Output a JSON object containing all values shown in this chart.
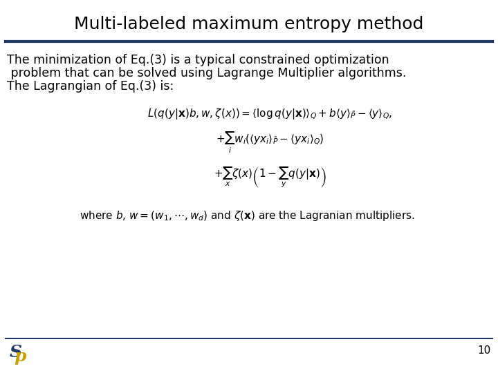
{
  "title": "Multi-labeled maximum entropy method",
  "body_line1": "The minimization of Eq.(3) is a typical constrained optimization",
  "body_line2": " problem that can be solved using Lagrange Multiplier algorithms.",
  "body_line3": "The Lagrangian of Eq.(3) is:",
  "formula_line1": "$L\\left(q(y|\\mathbf{x})b, w, \\zeta(x)\\right) = \\langle \\log q(y|\\mathbf{x}) \\rangle_Q + b\\langle y \\rangle_{\\tilde{P}} - \\langle y \\rangle_Q,$",
  "formula_line2": "$+ \\sum_i w_i \\left( \\langle yx_i \\rangle_{\\tilde{P}} - \\langle yx_i \\rangle_Q \\right)$",
  "formula_line3": "$+ \\sum_x \\zeta(x) \\left(1 - \\sum_y q(y|\\mathbf{x}) \\right)$",
  "caption": "where $b$, $w=(w_1, \\cdots , w_d)$ and $\\zeta(\\mathbf{x})$ are the Lagranian multipliers.",
  "page_number": "10",
  "bg_color": "#ffffff",
  "title_color": "#000000",
  "body_color": "#000000",
  "line_color": "#1f3864",
  "footer_line_color": "#1f3864",
  "logo_color_top": "#1f3864",
  "logo_color_bottom": "#c8a000",
  "title_fontsize": 18,
  "body_fontsize": 12.5,
  "formula_fontsize": 11,
  "caption_fontsize": 11
}
